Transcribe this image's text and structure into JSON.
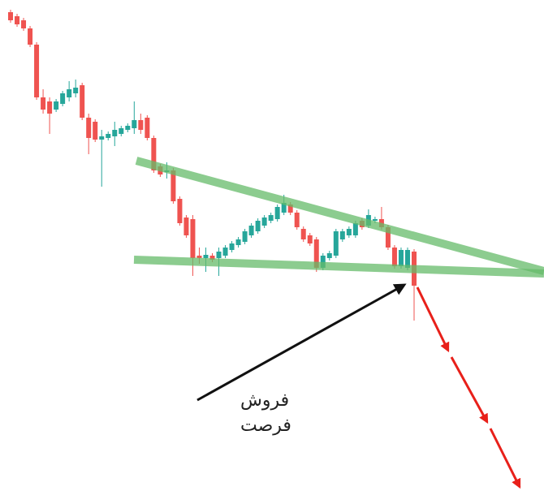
{
  "chart_data": {
    "type": "candlestick",
    "colors": {
      "up": "#26a69a",
      "down": "#ef5350"
    },
    "ylim": [
      0,
      605
    ],
    "open": [
      590,
      585,
      580,
      570,
      550,
      485,
      480,
      470,
      477,
      485,
      490,
      500,
      460,
      455,
      433,
      435,
      437,
      440,
      445,
      447,
      457,
      460,
      435,
      400,
      393,
      395,
      360,
      337,
      335,
      290,
      287,
      290,
      287,
      290,
      297,
      303,
      307,
      315,
      320,
      327,
      333,
      335,
      343,
      353,
      343,
      323,
      315,
      310,
      275,
      287,
      290,
      310,
      315,
      315,
      333,
      327,
      333,
      335,
      325,
      300,
      277,
      275,
      295
    ],
    "high": [
      593,
      588,
      583,
      573,
      553,
      495,
      485,
      483,
      493,
      505,
      507,
      503,
      465,
      458,
      445,
      443,
      455,
      450,
      453,
      480,
      465,
      463,
      438,
      403,
      405,
      398,
      363,
      340,
      340,
      300,
      300,
      293,
      300,
      303,
      308,
      313,
      323,
      330,
      336,
      340,
      343,
      353,
      365,
      356,
      346,
      326,
      318,
      313,
      293,
      296,
      323,
      323,
      326,
      333,
      336,
      347,
      338,
      350,
      328,
      303,
      300,
      300,
      298
    ],
    "low": [
      577,
      572,
      567,
      547,
      482,
      465,
      440,
      467,
      474,
      480,
      485,
      457,
      415,
      430,
      375,
      432,
      425,
      437,
      442,
      440,
      440,
      432,
      392,
      387,
      385,
      354,
      327,
      312,
      265,
      280,
      270,
      282,
      265,
      287,
      294,
      300,
      304,
      312,
      317,
      324,
      330,
      332,
      340,
      340,
      322,
      307,
      302,
      270,
      272,
      284,
      287,
      307,
      312,
      312,
      322,
      324,
      330,
      322,
      297,
      274,
      274,
      272,
      210
    ],
    "close": [
      580,
      575,
      570,
      550,
      485,
      470,
      465,
      480,
      490,
      495,
      497,
      460,
      435,
      433,
      437,
      440,
      445,
      447,
      450,
      457,
      445,
      435,
      395,
      390,
      395,
      357,
      330,
      315,
      287,
      287,
      291,
      285,
      295,
      300,
      305,
      310,
      320,
      327,
      333,
      337,
      340,
      350,
      355,
      343,
      325,
      310,
      305,
      275,
      290,
      293,
      320,
      320,
      323,
      330,
      325,
      340,
      335,
      325,
      300,
      277,
      297,
      297,
      253
    ],
    "annotations": [
      "فروش",
      "فرصت"
    ]
  }
}
